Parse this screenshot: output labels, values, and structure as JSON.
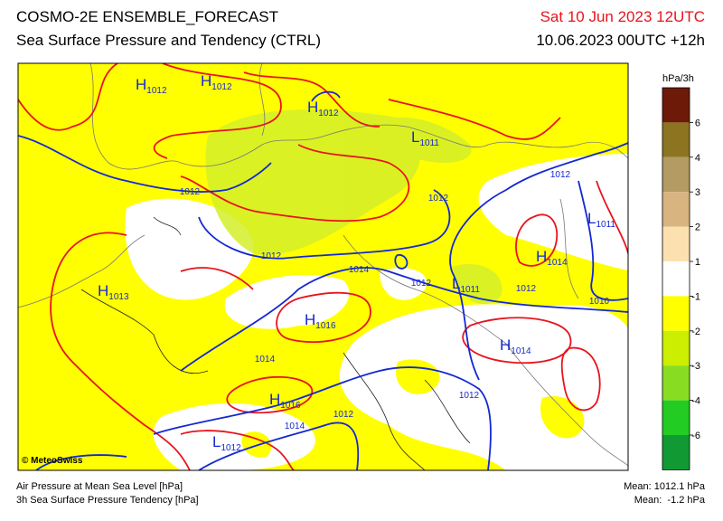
{
  "header": {
    "title": "COSMO-2E ENSEMBLE_FORECAST",
    "subtitle": "Sea Surface Pressure and Tendency (CTRL)",
    "valid_time": "Sat 10 Jun 2023 12UTC",
    "run": "10.06.2023 00UTC +12h"
  },
  "legend": {
    "unit": "hPa/3h",
    "colors": [
      "#6e1a08",
      "#8c7421",
      "#b39b63",
      "#d8b480",
      "#fde0b0",
      "#ffffff",
      "#ffff00",
      "#ccee00",
      "#88dd22",
      "#22cc22",
      "#119933"
    ],
    "ticks": [
      6,
      4,
      3,
      2,
      1,
      -1,
      -2,
      -3,
      -4,
      -6
    ]
  },
  "map": {
    "credit": "© MeteoSwiss",
    "centers": [
      {
        "letter": "H",
        "value": 1012
      },
      {
        "letter": "H",
        "value": 1012
      },
      {
        "letter": "H",
        "value": 1012
      },
      {
        "letter": "L",
        "value": 1011
      },
      {
        "letter": "L",
        "value": 1011
      },
      {
        "letter": "H",
        "value": 1014
      },
      {
        "letter": "H",
        "value": 1013
      },
      {
        "letter": "L",
        "value": 1011
      },
      {
        "letter": "H",
        "value": 1016
      },
      {
        "letter": "H",
        "value": 1014
      },
      {
        "letter": "H",
        "value": 1016
      },
      {
        "letter": "L",
        "value": 1012
      }
    ],
    "isobar_labels": [
      1012,
      1012,
      1012,
      1012,
      1014,
      1012,
      1012,
      1010,
      1014,
      1012,
      1014,
      1012
    ]
  },
  "footer": {
    "fields": [
      "Air Pressure at Mean Sea Level [hPa]",
      "3h Sea Surface Pressure Tendency [hPa]"
    ],
    "means": [
      "Mean: 1012.1 hPa",
      "Mean:  -1.2 hPa"
    ]
  }
}
